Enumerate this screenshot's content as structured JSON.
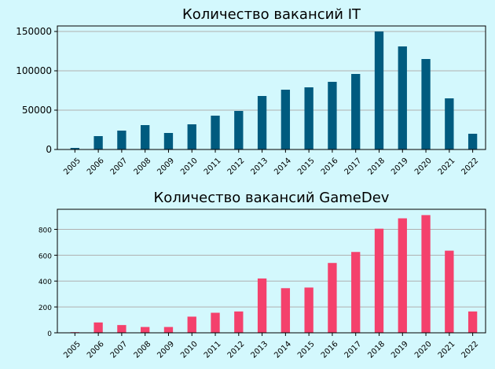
{
  "chart_data": [
    {
      "type": "bar",
      "title": "Количество вакансий IT",
      "categories": [
        "2005",
        "2006",
        "2007",
        "2008",
        "2009",
        "2010",
        "2011",
        "2012",
        "2013",
        "2014",
        "2015",
        "2016",
        "2017",
        "2018",
        "2019",
        "2020",
        "2021",
        "2022"
      ],
      "values": [
        2000,
        17000,
        24000,
        31000,
        21000,
        32000,
        43000,
        49000,
        68000,
        76000,
        79000,
        86000,
        96000,
        150000,
        131000,
        115000,
        65000,
        20000
      ],
      "ylim": [
        0,
        157000
      ],
      "yticks": [
        0,
        50000,
        100000,
        150000
      ],
      "grid": "y",
      "color": "#005b7f"
    },
    {
      "type": "bar",
      "title": "Количество вакансий GameDev",
      "categories": [
        "2005",
        "2006",
        "2007",
        "2008",
        "2009",
        "2010",
        "2011",
        "2012",
        "2013",
        "2014",
        "2015",
        "2016",
        "2017",
        "2018",
        "2019",
        "2020",
        "2021",
        "2022"
      ],
      "values": [
        5,
        80,
        60,
        45,
        45,
        125,
        155,
        165,
        420,
        345,
        350,
        540,
        625,
        805,
        885,
        910,
        635,
        165
      ],
      "ylim": [
        0,
        955
      ],
      "yticks": [
        0,
        200,
        400,
        600,
        800
      ],
      "grid": "y",
      "color": "#f4416c"
    }
  ]
}
